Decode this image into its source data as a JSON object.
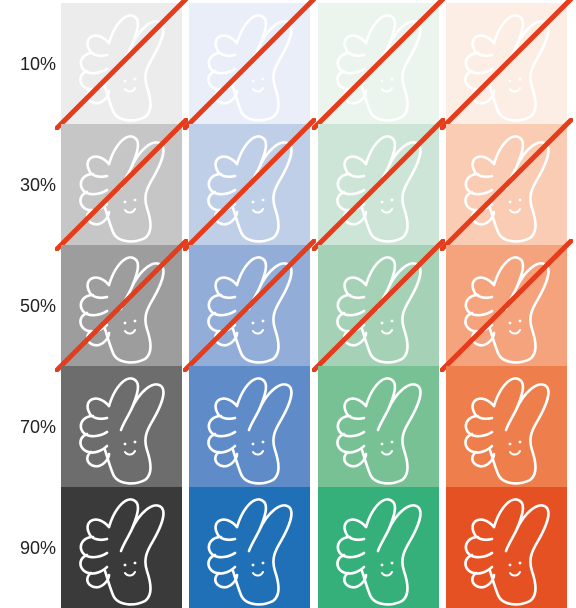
{
  "rows": [
    {
      "label": "10%",
      "crossed": true
    },
    {
      "label": "30%",
      "crossed": true
    },
    {
      "label": "50%",
      "crossed": true
    },
    {
      "label": "70%",
      "crossed": false
    },
    {
      "label": "90%",
      "crossed": false
    }
  ],
  "palettes": [
    {
      "name": "gray",
      "colors": [
        "#ececec",
        "#c6c6c6",
        "#9d9d9d",
        "#6d6d6d",
        "#3a3a3a"
      ]
    },
    {
      "name": "blue",
      "colors": [
        "#e9eef8",
        "#c0cfe8",
        "#93add9",
        "#5f8cc9",
        "#2070b8"
      ]
    },
    {
      "name": "green",
      "colors": [
        "#ebf5ee",
        "#cde5d6",
        "#a5d2b6",
        "#78c195",
        "#35b07a"
      ]
    },
    {
      "name": "orange",
      "colors": [
        "#fdeee5",
        "#f9ccb3",
        "#f5a37c",
        "#ee7e4b",
        "#e65123"
      ]
    }
  ],
  "icon": "thumbs-up-hand-icon",
  "slash_color": "#e53d1c"
}
